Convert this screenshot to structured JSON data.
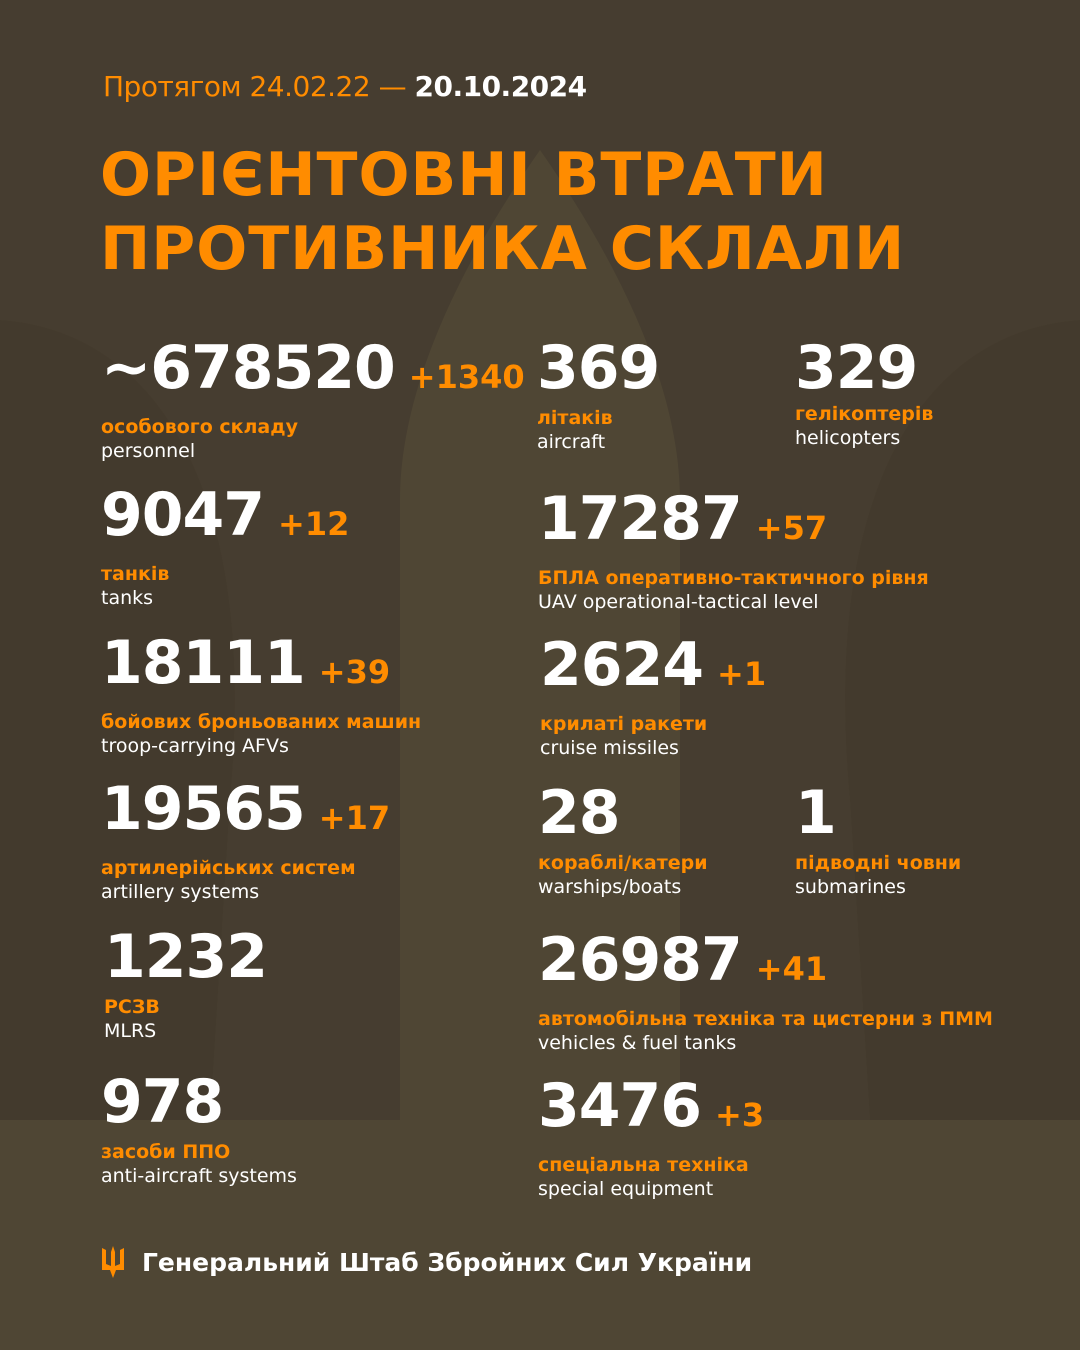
{
  "header": {
    "period_prefix": "Протягом 24.02.22 —",
    "period_end": "20.10.2024",
    "title_line1": "ОРІЄНТОВНІ ВТРАТИ",
    "title_line2": "ПРОТИВНИКА СКЛАЛИ"
  },
  "colors": {
    "background": "#463d30",
    "accent": "#ff8c00",
    "text": "#ffffff"
  },
  "stats": [
    {
      "value": "~678520",
      "delta": "+1340",
      "ua": "особового складу",
      "en": "personnel"
    },
    {
      "value": "369",
      "delta": "",
      "ua": "літаків",
      "en": "aircraft"
    },
    {
      "value": "329",
      "delta": "",
      "ua": "гелікоптерів",
      "en": "helicopters"
    },
    {
      "value": "9047",
      "delta": "+12",
      "ua": "танків",
      "en": "tanks"
    },
    {
      "value": "17287",
      "delta": "+57",
      "ua": "БПЛА оперативно-тактичного рівня",
      "en": "UAV operational-tactical level"
    },
    {
      "value": "18111",
      "delta": "+39",
      "ua": "бойових броньованих машин",
      "en": "troop-carrying AFVs"
    },
    {
      "value": "2624",
      "delta": "+1",
      "ua": "крилаті ракети",
      "en": "cruise missiles"
    },
    {
      "value": "19565",
      "delta": "+17",
      "ua": "артилерійських систем",
      "en": "artillery systems"
    },
    {
      "value": "28",
      "delta": "",
      "ua": "кораблі/катери",
      "en": "warships/boats"
    },
    {
      "value": "1",
      "delta": "",
      "ua": "підводні човни",
      "en": "submarines"
    },
    {
      "value": "1232",
      "delta": "",
      "ua": "РСЗВ",
      "en": "MLRS"
    },
    {
      "value": "26987",
      "delta": "+41",
      "ua": "автомобільна техніка та цистерни з ПММ",
      "en": "vehicles & fuel tanks"
    },
    {
      "value": "978",
      "delta": "",
      "ua": "засоби ППО",
      "en": "anti-aircraft systems"
    },
    {
      "value": "3476",
      "delta": "+3",
      "ua": "спеціальна техніка",
      "en": "special equipment"
    }
  ],
  "footer": {
    "org": "Генеральний Штаб Збройних Сил України",
    "logo_icon": "trident-icon"
  }
}
